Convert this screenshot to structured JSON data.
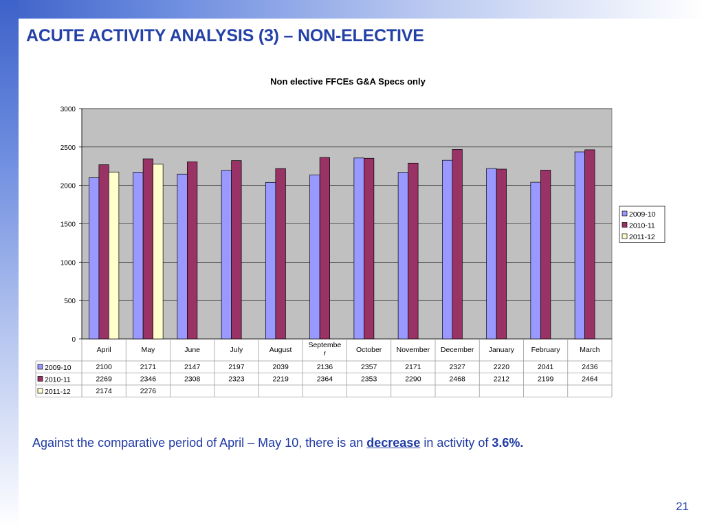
{
  "slide": {
    "title": "ACUTE ACTIVITY ANALYSIS (3) – NON-ELECTIVE",
    "caption_prefix": "Against the comparative period of April – May 10, there is an ",
    "caption_keyword": "decrease",
    "caption_middle": " in activity of ",
    "caption_value": "3.6%.",
    "page_number": "21"
  },
  "colors": {
    "accent": "#2441a8",
    "plot_bg": "#c0c0c0",
    "series": [
      "#9999ff",
      "#993366",
      "#ffffcc"
    ]
  },
  "chart_data": {
    "type": "bar",
    "title": "Non elective FFCEs G&A Specs only",
    "categories": [
      "April",
      "May",
      "June",
      "July",
      "August",
      "Septembe r",
      "October",
      "November",
      "December",
      "January",
      "February",
      "March"
    ],
    "series": [
      {
        "name": "2009-10",
        "values": [
          "2100",
          "2171",
          "2147",
          "2197",
          "2039",
          "2136",
          "2357",
          "2171",
          "2327",
          "2220",
          "2041",
          "2436"
        ]
      },
      {
        "name": "2010-11",
        "values": [
          "2269",
          "2346",
          "2308",
          "2323",
          "2219",
          "2364",
          "2353",
          "2290",
          "2468",
          "2212",
          "2199",
          "2464"
        ]
      },
      {
        "name": "2011-12",
        "values": [
          "2174",
          "2276",
          null,
          null,
          null,
          null,
          null,
          null,
          null,
          null,
          null,
          null
        ]
      }
    ],
    "ylim": [
      0,
      3000
    ],
    "yticks": [
      "0",
      "500",
      "1000",
      "1500",
      "2000",
      "2500",
      "3000"
    ],
    "grid": true,
    "legend_position": "right",
    "data_table": true
  }
}
